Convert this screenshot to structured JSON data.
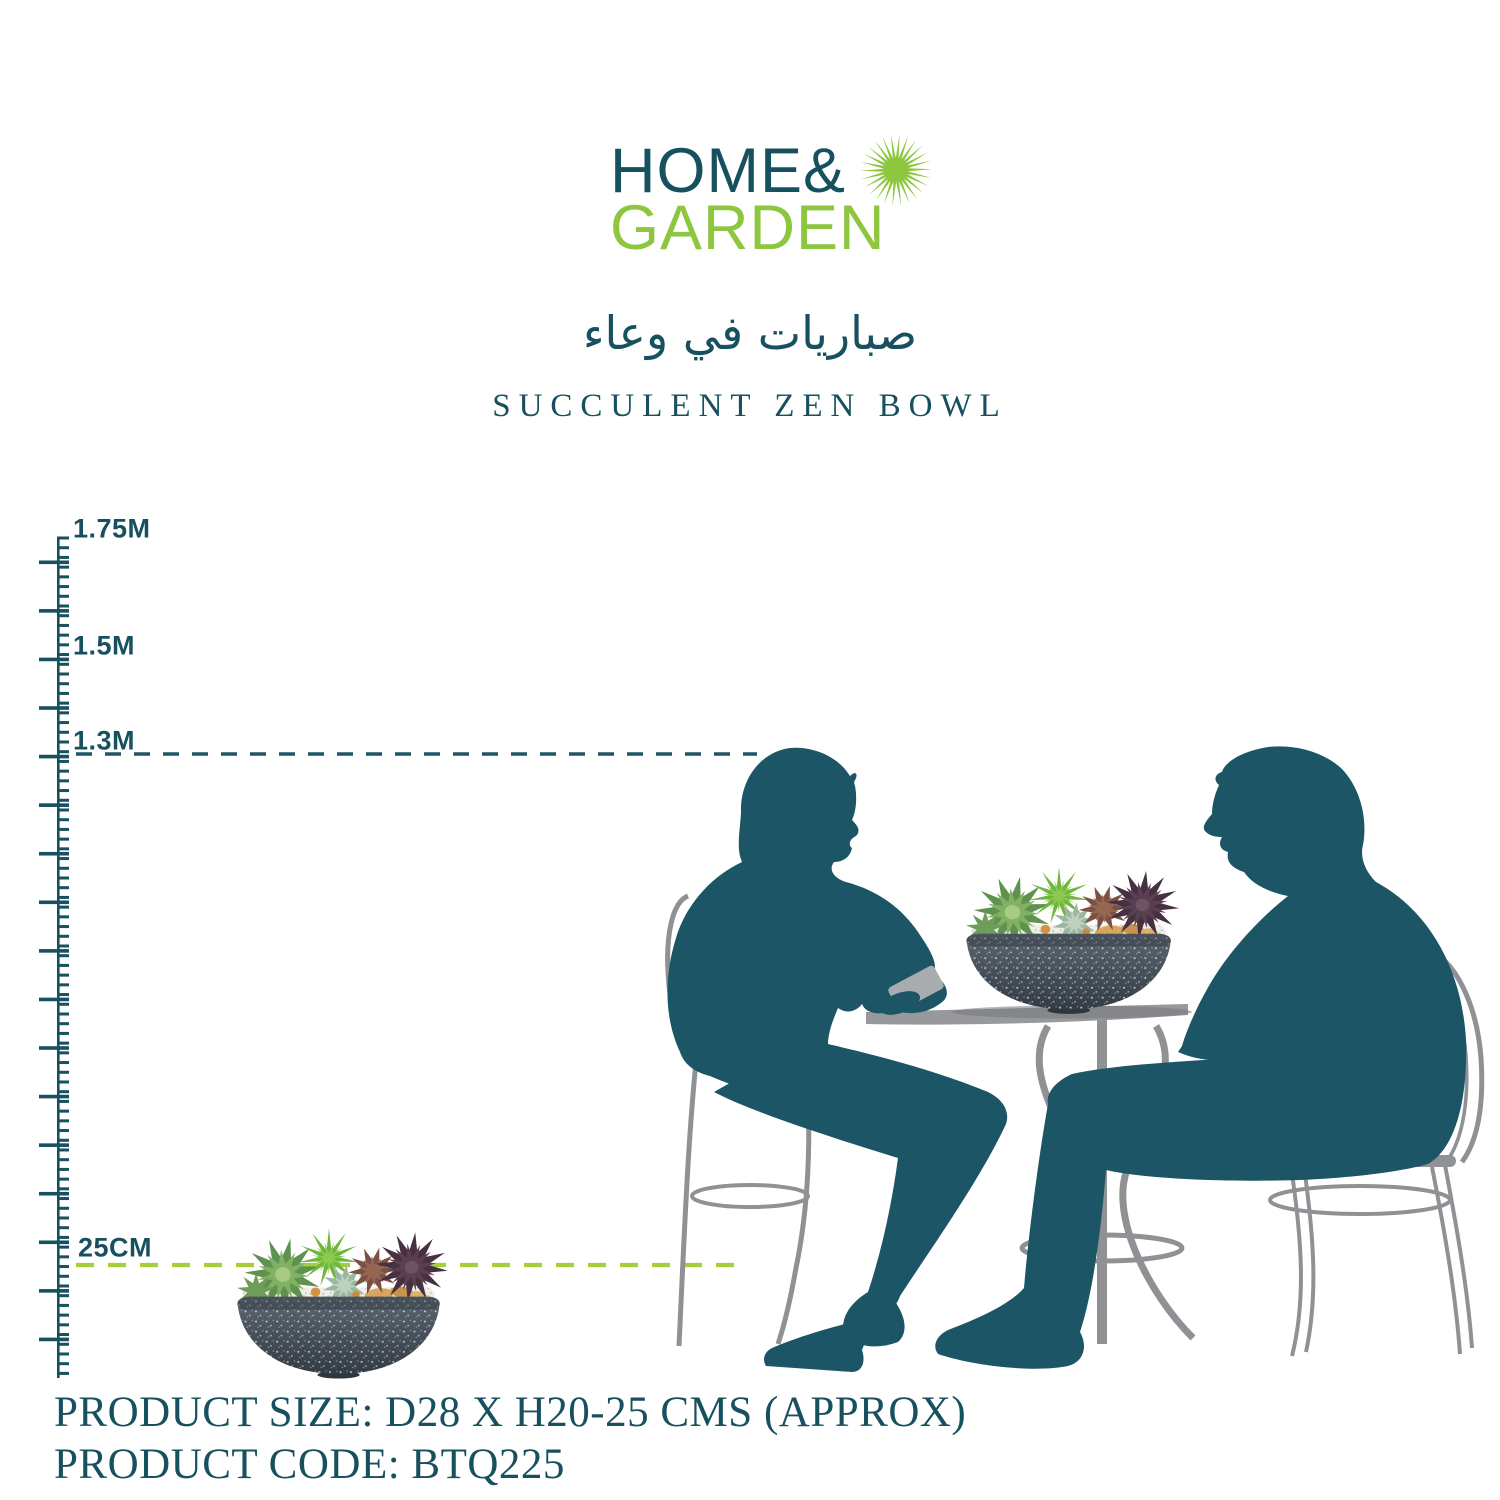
{
  "logo": {
    "word1": "HOME&",
    "word2": "GARDEN"
  },
  "icons": {
    "logo_burst": "starburst"
  },
  "titles": {
    "arabic": "صباريات في وعاء",
    "english": "SUCCULENT ZEN BOWL"
  },
  "ruler": {
    "marks": [
      {
        "label": "1.75M"
      },
      {
        "label": "1.5M"
      },
      {
        "label": "1.3M"
      },
      {
        "label": "25CM"
      }
    ]
  },
  "reference_lines": {
    "person_height_label": "1.3M",
    "product_height_label": "25CM"
  },
  "footer": {
    "size": "PRODUCT SIZE: D28 X H20-25 CMS (APPROX)",
    "code": "PRODUCT CODE: BTQ225"
  },
  "colors": {
    "teal_text": "#17505f",
    "silhouette": "#1c5666",
    "logo_green": "#8dc63f",
    "dash_green": "#a6ce39",
    "furniture_gray": "#8f9194",
    "table_gray": "#97999c",
    "phone_gray": "#a9acaf"
  }
}
